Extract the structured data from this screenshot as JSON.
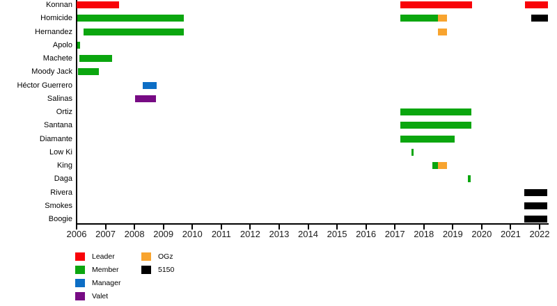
{
  "chart_data": {
    "type": "timeline-bar",
    "title": "",
    "x_axis": {
      "start": 2006,
      "end": 2022.3,
      "ticks": [
        2006,
        2007,
        2008,
        2009,
        2010,
        2011,
        2012,
        2013,
        2014,
        2015,
        2016,
        2017,
        2018,
        2019,
        2020,
        2021,
        2022
      ]
    },
    "legend": [
      {
        "key": "leader",
        "label": "Leader",
        "color": "#f80309"
      },
      {
        "key": "member",
        "label": "Member",
        "color": "#0ba60f"
      },
      {
        "key": "manager",
        "label": "Manager",
        "color": "#0d6ec5"
      },
      {
        "key": "valet",
        "label": "Valet",
        "color": "#770b84"
      },
      {
        "key": "ogz",
        "label": "OGz",
        "color": "#f8a42f"
      },
      {
        "key": "5150",
        "label": "5150",
        "color": "#000000"
      }
    ],
    "rows": [
      {
        "label": "Konnan",
        "bars": [
          {
            "start": 2006.0,
            "end": 2007.47,
            "role": "leader"
          },
          {
            "start": 2017.19,
            "end": 2019.66,
            "role": "leader"
          },
          {
            "start": 2021.49,
            "end": 2022.29,
            "role": "leader"
          }
        ]
      },
      {
        "label": "Homicide",
        "bars": [
          {
            "start": 2006.02,
            "end": 2009.7,
            "role": "member"
          },
          {
            "start": 2017.19,
            "end": 2018.48,
            "role": "member"
          },
          {
            "start": 2018.48,
            "end": 2018.8,
            "role": "ogz"
          },
          {
            "start": 2021.71,
            "end": 2022.29,
            "role": "5150"
          }
        ]
      },
      {
        "label": "Hernandez",
        "bars": [
          {
            "start": 2006.24,
            "end": 2009.7,
            "role": "member"
          },
          {
            "start": 2018.48,
            "end": 2018.8,
            "role": "ogz"
          }
        ]
      },
      {
        "label": "Apolo",
        "bars": [
          {
            "start": 2006.02,
            "end": 2006.13,
            "role": "member"
          }
        ]
      },
      {
        "label": "Machete",
        "bars": [
          {
            "start": 2006.1,
            "end": 2007.23,
            "role": "member"
          }
        ]
      },
      {
        "label": "Moody Jack",
        "bars": [
          {
            "start": 2006.05,
            "end": 2006.77,
            "role": "member"
          }
        ]
      },
      {
        "label": "Héctor Guerrero",
        "bars": [
          {
            "start": 2008.29,
            "end": 2008.77,
            "role": "manager"
          }
        ]
      },
      {
        "label": "Salinas",
        "bars": [
          {
            "start": 2008.02,
            "end": 2008.74,
            "role": "valet"
          }
        ]
      },
      {
        "label": "Ortiz",
        "bars": [
          {
            "start": 2017.19,
            "end": 2019.64,
            "role": "member"
          }
        ]
      },
      {
        "label": "Santana",
        "bars": [
          {
            "start": 2017.19,
            "end": 2019.64,
            "role": "member"
          }
        ]
      },
      {
        "label": "Diamante",
        "bars": [
          {
            "start": 2017.19,
            "end": 2019.07,
            "role": "member"
          }
        ]
      },
      {
        "label": "Low Ki",
        "bars": [
          {
            "start": 2017.57,
            "end": 2017.65,
            "role": "member"
          }
        ]
      },
      {
        "label": "King",
        "bars": [
          {
            "start": 2018.3,
            "end": 2018.48,
            "role": "member"
          },
          {
            "start": 2018.48,
            "end": 2018.8,
            "role": "ogz"
          }
        ]
      },
      {
        "label": "Daga",
        "bars": [
          {
            "start": 2019.52,
            "end": 2019.62,
            "role": "member"
          }
        ]
      },
      {
        "label": "Rivera",
        "bars": [
          {
            "start": 2021.47,
            "end": 2022.26,
            "role": "5150"
          }
        ]
      },
      {
        "label": "Smokes",
        "bars": [
          {
            "start": 2021.47,
            "end": 2022.26,
            "role": "5150"
          }
        ]
      },
      {
        "label": "Boogie",
        "bars": [
          {
            "start": 2021.47,
            "end": 2022.26,
            "role": "5150"
          }
        ]
      }
    ]
  }
}
